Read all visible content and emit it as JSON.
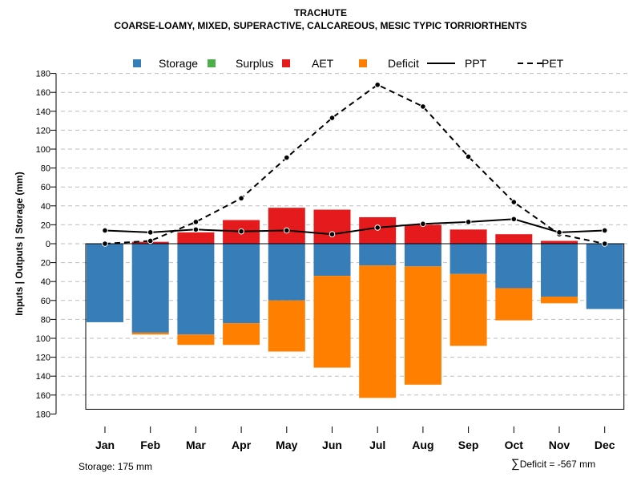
{
  "title": "TRACHUTE",
  "subtitle": "COARSE-LOAMY, MIXED, SUPERACTIVE, CALCAREOUS, MESIC TYPIC TORRIORTHENTS",
  "footer": {
    "storage_label": "Storage: 175 mm",
    "sigma": "∑",
    "deficit_label": "Deficit = -567 mm"
  },
  "colors": {
    "storage": "#377EB8",
    "surplus": "#4DAF4A",
    "aet": "#E41A1C",
    "deficit": "#FF7F00",
    "line": "#000000",
    "grid": "#BEBEBE"
  },
  "chart_data": {
    "type": "bar",
    "title": "TRACHUTE",
    "subtitle": "COARSE-LOAMY, MIXED, SUPERACTIVE, CALCAREOUS, MESIC TYPIC TORRIORTHENTS",
    "ylabel": "Inputs | Outputs | Storage    (mm)",
    "xlabel": "",
    "ylim": [
      -180,
      180
    ],
    "yticks": [
      180,
      160,
      140,
      120,
      100,
      80,
      60,
      40,
      20,
      0,
      -20,
      -40,
      -60,
      -80,
      -100,
      -120,
      -140,
      -160,
      -180
    ],
    "ytick_labels": [
      "180",
      "160",
      "140",
      "120",
      "100",
      "80",
      "60",
      "40",
      "20",
      "0",
      "20",
      "40",
      "60",
      "80",
      "100",
      "120",
      "140",
      "160",
      "180"
    ],
    "grid": true,
    "legend_position": "top",
    "legend": [
      {
        "key": "storage",
        "label": "Storage",
        "kind": "box"
      },
      {
        "key": "surplus",
        "label": "Surplus",
        "kind": "box"
      },
      {
        "key": "aet",
        "label": "AET",
        "kind": "box"
      },
      {
        "key": "deficit",
        "label": "Deficit",
        "kind": "box"
      },
      {
        "key": "ppt",
        "label": "PPT",
        "kind": "solid"
      },
      {
        "key": "pet",
        "label": "PET",
        "kind": "dashed"
      }
    ],
    "categories": [
      "Jan",
      "Feb",
      "Mar",
      "Apr",
      "May",
      "Jun",
      "Jul",
      "Aug",
      "Sep",
      "Oct",
      "Nov",
      "Dec"
    ],
    "storage_capacity": 175,
    "series": [
      {
        "name": "AET",
        "key": "aet",
        "values": [
          0,
          2,
          12,
          25,
          38,
          36,
          28,
          20,
          15,
          10,
          3,
          0
        ]
      },
      {
        "name": "Surplus",
        "key": "surplus",
        "values": [
          0,
          0,
          0,
          0,
          0,
          0,
          0,
          0,
          0,
          0,
          0,
          0
        ]
      },
      {
        "name": "Storage",
        "key": "storage",
        "values": [
          83,
          94,
          96,
          84,
          60,
          34,
          23,
          24,
          32,
          47,
          56,
          69
        ]
      },
      {
        "name": "Deficit",
        "key": "deficit",
        "values": [
          0,
          2,
          11,
          23,
          54,
          97,
          140,
          125,
          76,
          34,
          7,
          0
        ]
      },
      {
        "name": "PPT",
        "key": "ppt",
        "values": [
          14,
          12,
          15,
          13,
          14,
          10,
          17,
          21,
          23,
          26,
          12,
          14
        ]
      },
      {
        "name": "PET",
        "key": "pet",
        "values": [
          0,
          3,
          23,
          48,
          91,
          133,
          168,
          145,
          92,
          44,
          10,
          0
        ]
      }
    ]
  }
}
